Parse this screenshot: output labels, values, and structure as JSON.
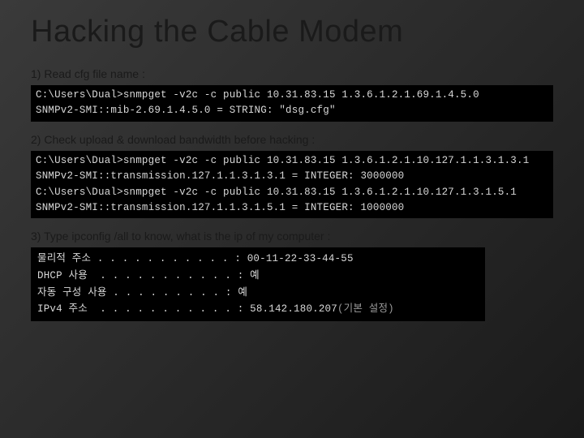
{
  "title": "Hacking the Cable Modem",
  "steps": {
    "s1": {
      "label": "1) Read cfg file name :"
    },
    "s2": {
      "label": "2) Check upload & download bandwidth before hacking :"
    },
    "s3": {
      "label": "3) Type ipconfig /all to know, what is the ip of my computer :"
    }
  },
  "terminal1": {
    "line1": "C:\\Users\\Dual>snmpget -v2c -c public 10.31.83.15 1.3.6.1.2.1.69.1.4.5.0",
    "line2": "SNMPv2-SMI::mib-2.69.1.4.5.0 = STRING: \"dsg.cfg\""
  },
  "terminal2": {
    "line1": "C:\\Users\\Dual>snmpget -v2c -c public 10.31.83.15 1.3.6.1.2.1.10.127.1.1.3.1.3.1",
    "line2": "SNMPv2-SMI::transmission.127.1.1.3.1.3.1 = INTEGER: 3000000",
    "line3": "C:\\Users\\Dual>snmpget -v2c -c public 10.31.83.15 1.3.6.1.2.1.10.127.1.3.1.5.1",
    "line4": "SNMPv2-SMI::transmission.127.1.1.3.1.5.1 = INTEGER: 1000000"
  },
  "terminal3": {
    "r1_label": "물리적 주소 . . . . . . . . . . . :",
    "r1_value": " 00-11-22-33-44-55",
    "r2_label": "DHCP 사용  . . . . . . . . . . . :",
    "r2_value": " 예",
    "r3_label": "자동 구성 사용 . . . . . . . . . :",
    "r3_value": " 예",
    "r4_label": "IPv4 주소  . . . . . . . . . . . :",
    "r4_value": " 58.142.180.207",
    "r4_suffix": "(기본 설정)"
  },
  "colors": {
    "slide_bg_start": "#3a3a3a",
    "slide_bg_end": "#1a1a1a",
    "title_color": "#1a1a1a",
    "terminal_bg": "#000000",
    "terminal_fg": "#d8d8d8",
    "terminal_dim": "#9a9a9a"
  },
  "typography": {
    "title_fontsize_pt": 29,
    "label_fontsize_pt": 10.5,
    "terminal_fontsize_pt": 9.5,
    "terminal_font": "Courier New"
  }
}
